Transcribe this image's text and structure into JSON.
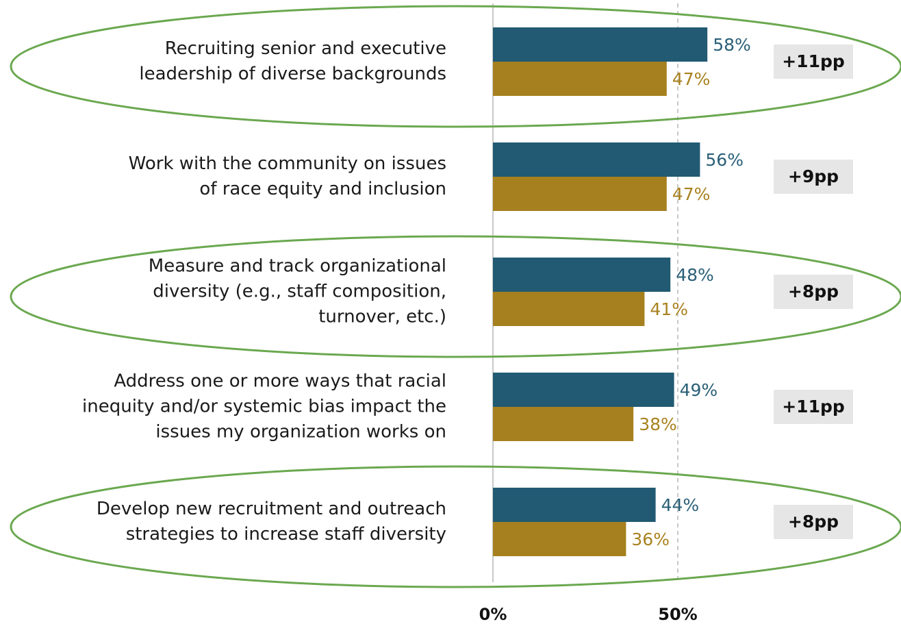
{
  "chart_data": {
    "type": "bar",
    "orientation": "horizontal",
    "categories": [
      "Recruiting senior and executive\nleadership of diverse backgrounds",
      "Work with the community on issues\nof race equity and inclusion",
      "Measure and track organizational\ndiversity (e.g., staff composition,\nturnover, etc.)",
      "Address one or more ways that racial\ninequity and/or systemic bias impact the\nissues my organization works on",
      "Develop new recruitment and outreach\nstrategies to increase staff diversity"
    ],
    "series": [
      {
        "color": "#215a72",
        "label_color": "#2a5f77",
        "values": [
          58,
          56,
          48,
          49,
          44
        ],
        "value_labels": [
          "58%",
          "56%",
          "48%",
          "49%",
          "44%"
        ]
      },
      {
        "color": "#a6801f",
        "label_color": "#a8821f",
        "values": [
          47,
          47,
          41,
          38,
          36
        ],
        "value_labels": [
          "47%",
          "47%",
          "41%",
          "38%",
          "36%"
        ]
      }
    ],
    "annotations": [
      "+11pp",
      "+9pp",
      "+8pp",
      "+11pp",
      "+8pp"
    ],
    "highlighted": [
      0,
      2,
      4
    ],
    "highlight_color": "#6aa84f",
    "xlim": [
      0,
      110
    ],
    "xticks": [
      {
        "value": 0,
        "label": "0%"
      },
      {
        "value": 50,
        "label": "50%"
      }
    ],
    "grid": true
  }
}
